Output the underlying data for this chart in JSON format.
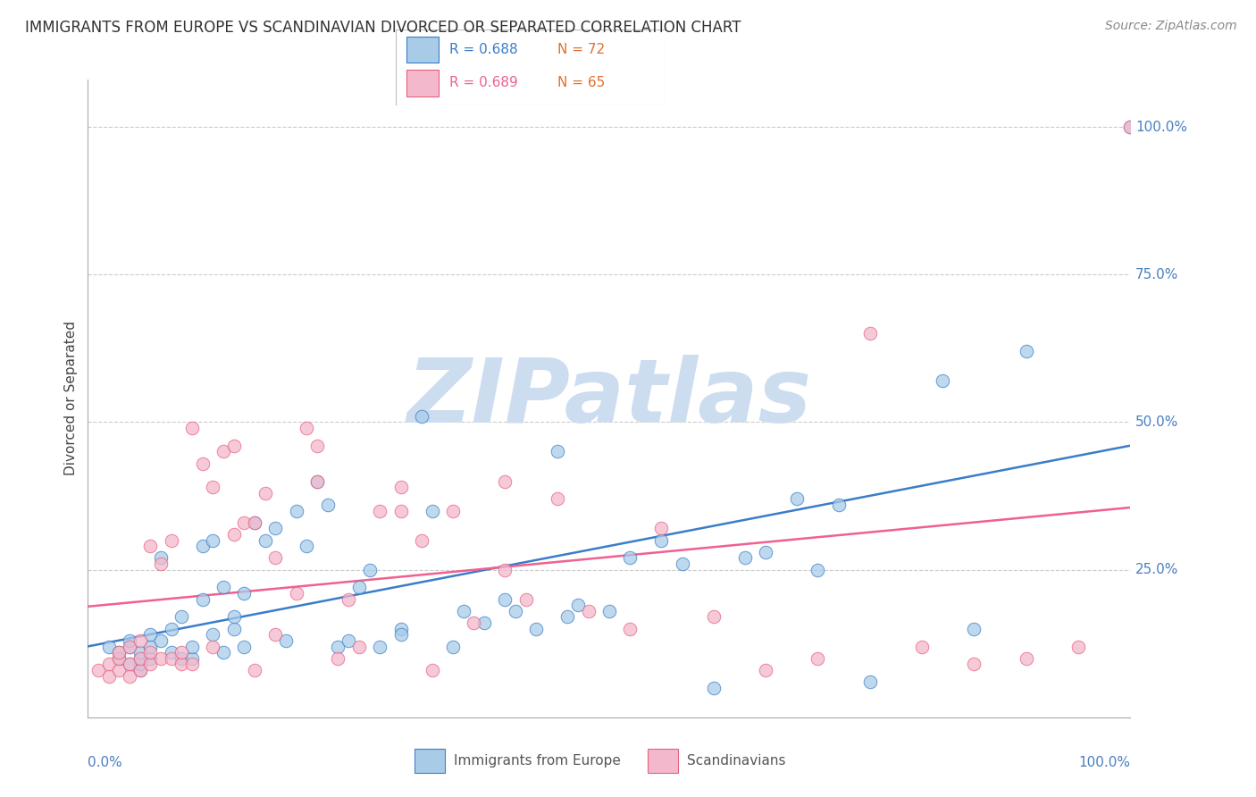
{
  "title": "IMMIGRANTS FROM EUROPE VS SCANDINAVIAN DIVORCED OR SEPARATED CORRELATION CHART",
  "source": "Source: ZipAtlas.com",
  "ylabel": "Divorced or Separated",
  "legend_label1": "Immigrants from Europe",
  "legend_label2": "Scandinavians",
  "R1": "0.688",
  "N1": "72",
  "R2": "0.689",
  "N2": "65",
  "ytick_labels": [
    "25.0%",
    "50.0%",
    "75.0%",
    "100.0%"
  ],
  "ytick_values": [
    0.25,
    0.5,
    0.75,
    1.0
  ],
  "color_blue_fill": "#a8cce8",
  "color_pink_fill": "#f4b8cc",
  "color_blue_edge": "#3a7dc9",
  "color_pink_edge": "#e8607a",
  "color_blue_line": "#3a7dc9",
  "color_pink_line": "#f06090",
  "color_axis_right": "#4a7fc1",
  "color_N": "#e07030",
  "watermark_color": "#ccddf0",
  "blue_x": [
    0.02,
    0.03,
    0.03,
    0.04,
    0.04,
    0.04,
    0.05,
    0.05,
    0.05,
    0.05,
    0.06,
    0.06,
    0.06,
    0.07,
    0.07,
    0.08,
    0.08,
    0.09,
    0.09,
    0.1,
    0.1,
    0.11,
    0.11,
    0.12,
    0.12,
    0.13,
    0.13,
    0.14,
    0.14,
    0.15,
    0.15,
    0.16,
    0.17,
    0.18,
    0.19,
    0.2,
    0.21,
    0.22,
    0.23,
    0.24,
    0.25,
    0.26,
    0.27,
    0.28,
    0.3,
    0.3,
    0.32,
    0.33,
    0.35,
    0.36,
    0.38,
    0.4,
    0.41,
    0.43,
    0.45,
    0.46,
    0.47,
    0.5,
    0.52,
    0.55,
    0.57,
    0.6,
    0.63,
    0.65,
    0.68,
    0.7,
    0.72,
    0.75,
    0.82,
    0.85,
    0.9,
    1.0
  ],
  "blue_y": [
    0.12,
    0.1,
    0.11,
    0.09,
    0.12,
    0.13,
    0.08,
    0.09,
    0.1,
    0.11,
    0.1,
    0.12,
    0.14,
    0.13,
    0.27,
    0.11,
    0.15,
    0.1,
    0.17,
    0.1,
    0.12,
    0.2,
    0.29,
    0.14,
    0.3,
    0.11,
    0.22,
    0.15,
    0.17,
    0.12,
    0.21,
    0.33,
    0.3,
    0.32,
    0.13,
    0.35,
    0.29,
    0.4,
    0.36,
    0.12,
    0.13,
    0.22,
    0.25,
    0.12,
    0.15,
    0.14,
    0.51,
    0.35,
    0.12,
    0.18,
    0.16,
    0.2,
    0.18,
    0.15,
    0.45,
    0.17,
    0.19,
    0.18,
    0.27,
    0.3,
    0.26,
    0.05,
    0.27,
    0.28,
    0.37,
    0.25,
    0.36,
    0.06,
    0.57,
    0.15,
    0.62,
    1.0
  ],
  "pink_x": [
    0.01,
    0.02,
    0.02,
    0.03,
    0.03,
    0.03,
    0.04,
    0.04,
    0.04,
    0.05,
    0.05,
    0.05,
    0.06,
    0.06,
    0.06,
    0.07,
    0.07,
    0.08,
    0.08,
    0.09,
    0.09,
    0.1,
    0.11,
    0.12,
    0.13,
    0.14,
    0.15,
    0.16,
    0.17,
    0.18,
    0.2,
    0.21,
    0.22,
    0.24,
    0.25,
    0.26,
    0.28,
    0.3,
    0.32,
    0.33,
    0.35,
    0.37,
    0.4,
    0.42,
    0.45,
    0.48,
    0.52,
    0.55,
    0.6,
    0.65,
    0.7,
    0.75,
    0.8,
    0.85,
    0.9,
    0.95,
    1.0,
    0.1,
    0.12,
    0.14,
    0.16,
    0.18,
    0.22,
    0.3,
    0.4
  ],
  "pink_y": [
    0.08,
    0.07,
    0.09,
    0.08,
    0.1,
    0.11,
    0.07,
    0.09,
    0.12,
    0.08,
    0.1,
    0.13,
    0.09,
    0.11,
    0.29,
    0.1,
    0.26,
    0.3,
    0.1,
    0.09,
    0.11,
    0.09,
    0.43,
    0.39,
    0.45,
    0.31,
    0.33,
    0.08,
    0.38,
    0.14,
    0.21,
    0.49,
    0.4,
    0.1,
    0.2,
    0.12,
    0.35,
    0.35,
    0.3,
    0.08,
    0.35,
    0.16,
    0.25,
    0.2,
    0.37,
    0.18,
    0.15,
    0.32,
    0.17,
    0.08,
    0.1,
    0.65,
    0.12,
    0.09,
    0.1,
    0.12,
    1.0,
    0.49,
    0.12,
    0.46,
    0.33,
    0.27,
    0.46,
    0.39,
    0.4
  ]
}
